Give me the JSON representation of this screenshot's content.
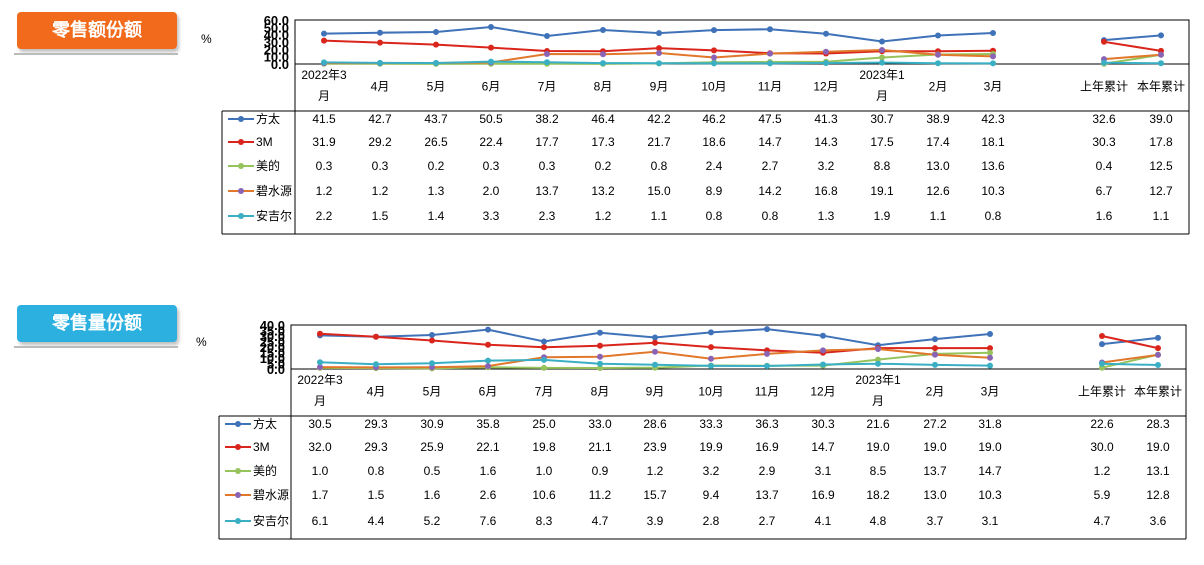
{
  "colors": {
    "sales_badge": "#f26a1b",
    "volume_badge": "#2bb0e0",
    "方太": "#3f72b8",
    "3M": "#d9251c",
    "美的": "#96c35c",
    "碧水源": "#e0772b",
    "安吉尔": "#3aafc4",
    "marker_purple": "#8b63b5"
  },
  "charts": [
    {
      "badge": "零售额份额",
      "unit": "%",
      "chart_data": {
        "type": "line",
        "title": "零售额份额",
        "ylabel": "%",
        "ylim": [
          0,
          60
        ],
        "yticks": [
          "60.0",
          "50.0",
          "40.0",
          "30.0",
          "20.0",
          "10.0",
          "0.0"
        ],
        "categories": [
          "2022年3月",
          "4月",
          "5月",
          "6月",
          "7月",
          "8月",
          "9月",
          "10月",
          "11月",
          "12月",
          "2023年1月",
          "2月",
          "3月",
          "上年累计",
          "本年累计"
        ],
        "series": [
          {
            "name": "方太",
            "values": [
              41.5,
              42.7,
              43.7,
              50.5,
              38.2,
              46.4,
              42.2,
              46.2,
              47.5,
              41.3,
              30.7,
              38.9,
              42.3,
              32.6,
              39.0
            ]
          },
          {
            "name": "3M",
            "values": [
              31.9,
              29.2,
              26.5,
              22.4,
              17.7,
              17.3,
              21.7,
              18.6,
              14.7,
              14.3,
              17.5,
              17.4,
              18.1,
              30.3,
              17.8
            ]
          },
          {
            "name": "美的",
            "values": [
              0.3,
              0.3,
              0.2,
              0.3,
              0.3,
              0.2,
              0.8,
              2.4,
              2.7,
              3.2,
              8.8,
              13.0,
              13.6,
              0.4,
              12.5
            ]
          },
          {
            "name": "碧水源",
            "values": [
              1.2,
              1.2,
              1.3,
              2.0,
              13.7,
              13.2,
              15.0,
              8.9,
              14.2,
              16.8,
              19.1,
              12.6,
              10.3,
              6.7,
              12.7
            ]
          },
          {
            "name": "安吉尔",
            "values": [
              2.2,
              1.5,
              1.4,
              3.3,
              2.3,
              1.2,
              1.1,
              0.8,
              0.8,
              1.3,
              1.9,
              1.1,
              0.8,
              1.6,
              1.1
            ]
          }
        ],
        "table_rows": [
          [
            "41.5",
            "42.7",
            "43.7",
            "50.5",
            "38.2",
            "46.4",
            "42.2",
            "46.2",
            "47.5",
            "41.3",
            "30.7",
            "38.9",
            "42.3",
            "32.6",
            "39.0"
          ],
          [
            "31.9",
            "29.2",
            "26.5",
            "22.4",
            "17.7",
            "17.3",
            "21.7",
            "18.6",
            "14.7",
            "14.3",
            "17.5",
            "17.4",
            "18.1",
            "30.3",
            "17.8"
          ],
          [
            "0.3",
            "0.3",
            "0.2",
            "0.3",
            "0.3",
            "0.2",
            "0.8",
            "2.4",
            "2.7",
            "3.2",
            "8.8",
            "13.0",
            "13.6",
            "0.4",
            "12.5"
          ],
          [
            "1.2",
            "1.2",
            "1.3",
            "2.0",
            "13.7",
            "13.2",
            "15.0",
            "8.9",
            "14.2",
            "16.8",
            "19.1",
            "12.6",
            "10.3",
            "6.7",
            "12.7"
          ],
          [
            "2.2",
            "1.5",
            "1.4",
            "3.3",
            "2.3",
            "1.2",
            "1.1",
            "0.8",
            "0.8",
            "1.3",
            "1.9",
            "1.1",
            "0.8",
            "1.6",
            "1.1"
          ]
        ]
      }
    },
    {
      "badge": "零售量份额",
      "unit": "%",
      "chart_data": {
        "type": "line",
        "title": "零售量份额",
        "ylabel": "%",
        "ylim": [
          0,
          40
        ],
        "yticks": [
          "40.0",
          "35.0",
          "30.0",
          "25.0",
          "20.0",
          "15.0",
          "10.0",
          "5.0",
          "0.0"
        ],
        "categories": [
          "2022年3月",
          "4月",
          "5月",
          "6月",
          "7月",
          "8月",
          "9月",
          "10月",
          "11月",
          "12月",
          "2023年1月",
          "2月",
          "3月",
          "上年累计",
          "本年累计"
        ],
        "series": [
          {
            "name": "方太",
            "values": [
              30.5,
              29.3,
              30.9,
              35.8,
              25.0,
              33.0,
              28.6,
              33.3,
              36.3,
              30.3,
              21.6,
              27.2,
              31.8,
              22.6,
              28.3
            ]
          },
          {
            "name": "3M",
            "values": [
              32.0,
              29.3,
              25.9,
              22.1,
              19.8,
              21.1,
              23.9,
              19.9,
              16.9,
              14.7,
              19.0,
              19.0,
              19.0,
              30.0,
              19.0
            ]
          },
          {
            "name": "美的",
            "values": [
              1.0,
              0.8,
              0.5,
              1.6,
              1.0,
              0.9,
              1.2,
              3.2,
              2.9,
              3.1,
              8.5,
              13.7,
              14.7,
              1.2,
              13.1
            ]
          },
          {
            "name": "碧水源",
            "values": [
              1.7,
              1.5,
              1.6,
              2.6,
              10.6,
              11.2,
              15.7,
              9.4,
              13.7,
              16.9,
              18.2,
              13.0,
              10.3,
              5.9,
              12.8
            ]
          },
          {
            "name": "安吉尔",
            "values": [
              6.1,
              4.4,
              5.2,
              7.6,
              8.3,
              4.7,
              3.9,
              2.8,
              2.7,
              4.1,
              4.8,
              3.7,
              3.1,
              4.7,
              3.6
            ]
          }
        ],
        "table_rows": [
          [
            "30.5",
            "29.3",
            "30.9",
            "35.8",
            "25.0",
            "33.0",
            "28.6",
            "33.3",
            "36.3",
            "30.3",
            "21.6",
            "27.2",
            "31.8",
            "22.6",
            "28.3"
          ],
          [
            "32.0",
            "29.3",
            "25.9",
            "22.1",
            "19.8",
            "21.1",
            "23.9",
            "19.9",
            "16.9",
            "14.7",
            "19.0",
            "19.0",
            "19.0",
            "30.0",
            "19.0"
          ],
          [
            "1.0",
            "0.8",
            "0.5",
            "1.6",
            "1.0",
            "0.9",
            "1.2",
            "3.2",
            "2.9",
            "3.1",
            "8.5",
            "13.7",
            "14.7",
            "1.2",
            "13.1"
          ],
          [
            "1.7",
            "1.5",
            "1.6",
            "2.6",
            "10.6",
            "11.2",
            "15.7",
            "9.4",
            "13.7",
            "16.9",
            "18.2",
            "13.0",
            "10.3",
            "5.9",
            "12.8"
          ],
          [
            "6.1",
            "4.4",
            "5.2",
            "7.6",
            "8.3",
            "4.7",
            "3.9",
            "2.8",
            "2.7",
            "4.1",
            "4.8",
            "3.7",
            "3.1",
            "4.7",
            "3.6"
          ]
        ]
      }
    }
  ]
}
